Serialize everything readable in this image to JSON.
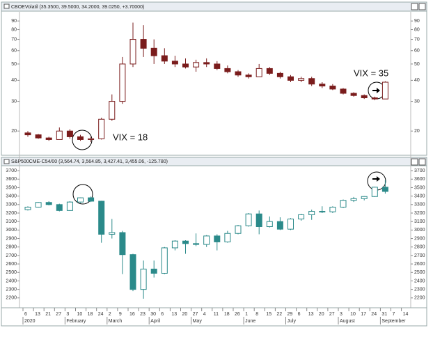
{
  "chart_data": [
    {
      "type": "candlestick",
      "title": "CBOEVolatil (35.3500, 39.5000, 34.2000, 39.0250, +3.70000)",
      "annotations": [
        "VIX = 18",
        "VIX = 35"
      ],
      "series": [
        {
          "color": "#7a1c1c",
          "open": [
            19.5,
            19,
            18.2,
            17.8,
            20,
            18.5,
            17.8,
            18,
            23.5,
            30,
            50,
            70,
            62,
            56,
            52,
            50,
            48,
            51,
            50,
            47,
            45,
            43,
            42,
            47,
            44,
            42,
            40,
            41,
            38,
            37,
            35.5,
            33.5,
            32.5,
            31.5,
            31,
            null,
            null
          ],
          "high": [
            20,
            19.2,
            18.5,
            21,
            20.5,
            19,
            18.5,
            24,
            33,
            55,
            88,
            85,
            70,
            62,
            56,
            54,
            53,
            54,
            52,
            49,
            46,
            44,
            50,
            48,
            45,
            43,
            42,
            42,
            39,
            38,
            36,
            34,
            33,
            32,
            39.5,
            null,
            null
          ],
          "low": [
            18.5,
            18,
            17.5,
            17.8,
            18,
            17.5,
            17.2,
            17.8,
            23,
            29,
            48,
            55,
            50,
            50,
            48,
            47,
            45,
            48,
            46,
            44,
            42,
            41,
            42,
            43,
            41,
            39,
            39,
            37,
            36,
            35,
            33,
            32,
            31,
            30.5,
            31,
            null,
            null
          ],
          "close": [
            19,
            18.2,
            17.8,
            20,
            18.5,
            17.8,
            18,
            23.5,
            30,
            50,
            70,
            62,
            56,
            52,
            50,
            48,
            51,
            50,
            47,
            45,
            43,
            42,
            47,
            44,
            42,
            40,
            41,
            38,
            37,
            35.5,
            33.5,
            32.5,
            31.5,
            31,
            39,
            null,
            null
          ]
        }
      ],
      "ylim": [
        14.5,
        102
      ],
      "yticks": [
        20,
        30,
        40,
        50,
        60,
        70,
        80,
        90
      ],
      "log_scale": true
    },
    {
      "type": "candlestick",
      "title": "S&P500CME-C54/00 (3,564.74, 3,564.85, 3,427.41, 3,455.06, -125.780)",
      "categories": [
        "6",
        "13",
        "21",
        "27",
        "3",
        "10",
        "18",
        "24",
        "2",
        "9",
        "16",
        "23",
        "30",
        "6",
        "13",
        "20",
        "27",
        "4",
        "11",
        "18",
        "26",
        "1",
        "8",
        "15",
        "22",
        "29",
        "6",
        "13",
        "20",
        "27",
        "3",
        "10",
        "17",
        "24",
        "31",
        "7",
        "14"
      ],
      "month_labels": [
        "2020",
        null,
        null,
        null,
        "February",
        null,
        null,
        null,
        "March",
        null,
        null,
        null,
        "April",
        null,
        null,
        null,
        "May",
        null,
        null,
        null,
        null,
        "June",
        null,
        null,
        null,
        "July",
        null,
        null,
        null,
        null,
        "August",
        null,
        null,
        null,
        "September",
        null,
        null
      ],
      "series": [
        {
          "color": "#2b8a8a",
          "open": [
            3240,
            3270,
            3325,
            3300,
            3230,
            3330,
            3380,
            3340,
            2950,
            2970,
            2710,
            2300,
            2540,
            2490,
            2790,
            2870,
            2840,
            2830,
            2930,
            2860,
            2960,
            3050,
            3190,
            3040,
            3100,
            3010,
            3130,
            3180,
            3220,
            3215,
            3270,
            3350,
            3370,
            3395,
            3505,
            null,
            null
          ],
          "high": [
            3280,
            3330,
            3340,
            3310,
            3340,
            3385,
            3395,
            3345,
            3130,
            2990,
            2720,
            2640,
            2640,
            2800,
            2880,
            2880,
            2960,
            2940,
            2950,
            2990,
            3060,
            3200,
            3230,
            3160,
            3150,
            3140,
            3190,
            3240,
            3280,
            3280,
            3360,
            3390,
            3400,
            3510,
            3590,
            null,
            null
          ],
          "low": [
            3230,
            3265,
            3290,
            3220,
            3225,
            3320,
            3330,
            2850,
            2900,
            2480,
            2280,
            2190,
            2440,
            2480,
            2760,
            2720,
            2810,
            2800,
            2760,
            2850,
            2950,
            3040,
            2950,
            3030,
            3000,
            3000,
            3110,
            3120,
            3200,
            3200,
            3260,
            3330,
            3350,
            3390,
            3430,
            null,
            null
          ],
          "close": [
            3270,
            3325,
            3300,
            3230,
            3330,
            3380,
            3340,
            2950,
            2970,
            2710,
            2300,
            2540,
            2490,
            2790,
            2870,
            2840,
            2830,
            2930,
            2860,
            2960,
            3050,
            3190,
            3040,
            3100,
            3010,
            3130,
            3180,
            3220,
            3215,
            3270,
            3350,
            3370,
            3395,
            3505,
            3455,
            null,
            null
          ]
        }
      ],
      "ylim": [
        2100,
        3750
      ],
      "yticks": [
        2200,
        2300,
        2400,
        2500,
        2600,
        2700,
        2800,
        2900,
        3000,
        3100,
        3200,
        3300,
        3400,
        3500,
        3600,
        3700
      ],
      "log_scale": false
    }
  ]
}
